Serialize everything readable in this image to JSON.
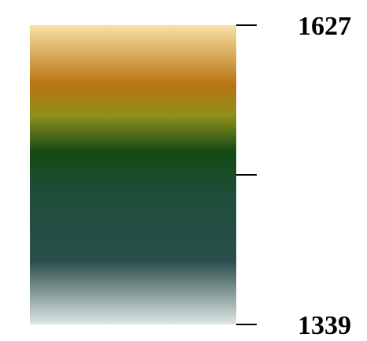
{
  "chart_data": {
    "type": "heatmap",
    "title": "",
    "colorbar": {
      "orientation": "vertical",
      "range": [
        1339,
        1627
      ],
      "tick_labels": [
        "1627",
        "1339"
      ],
      "ticks": [
        1627,
        1483,
        1339
      ],
      "colormap_stops": [
        {
          "value": 1627,
          "color": "#f8e0a4"
        },
        {
          "value": 1570,
          "color": "#b97414"
        },
        {
          "value": 1540,
          "color": "#8e901a"
        },
        {
          "value": 1505,
          "color": "#134a16"
        },
        {
          "value": 1460,
          "color": "#1f4e3c"
        },
        {
          "value": 1400,
          "color": "#2a4e4c"
        },
        {
          "value": 1339,
          "color": "#dfe6e4"
        }
      ]
    }
  }
}
